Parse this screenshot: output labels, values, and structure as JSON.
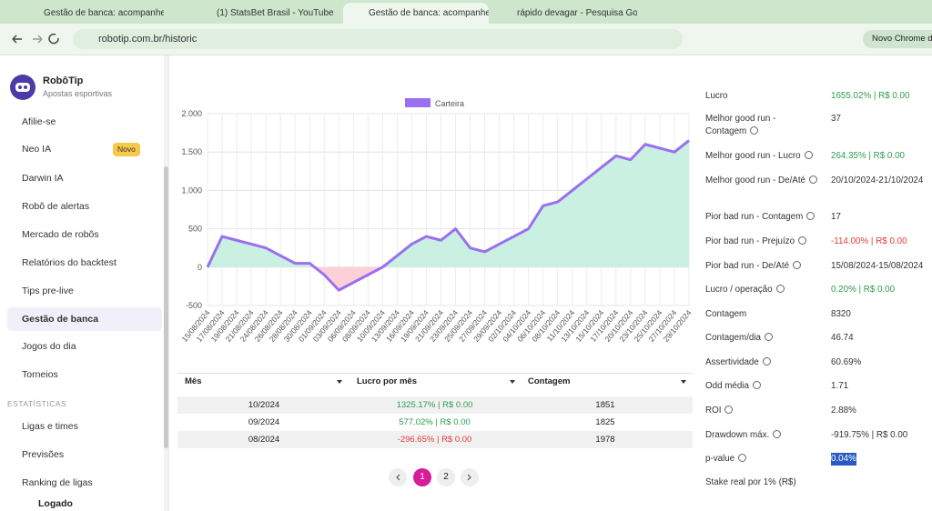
{
  "browser": {
    "tabs": [
      "Gestão de banca: acompanhe t",
      "(1) StatsBet Brasil - YouTube",
      "Gestão de banca: acompanhe t",
      "rápido devagar - Pesquisa Goo"
    ],
    "url": "robotip.com.br/historic",
    "profile": "Novo Chrome disp"
  },
  "sidebar": {
    "brand": "RobôTip",
    "tagline": "Apostas esportivas",
    "badge": "Novo",
    "items": [
      "Afilie-se",
      "Neo IA",
      "Darwin IA",
      "Robô de alertas",
      "Mercado de robôs",
      "Relatórios do backtest",
      "Tips pre-live",
      "Gestão de banca",
      "Jogos do dia",
      "Torneios"
    ],
    "section": "ESTATÍSTICAS",
    "section_items": [
      "Ligas e times",
      "Previsões",
      "Ranking de ligas"
    ],
    "user": "Logado"
  },
  "chart_data": {
    "type": "line",
    "legend": "Carteira",
    "categories": [
      "15/08/2024",
      "17/08/2024",
      "19/08/2024",
      "21/08/2024",
      "24/08/2024",
      "26/08/2024",
      "28/08/2024",
      "30/08/2024",
      "01/09/2024",
      "03/09/2024",
      "06/09/2024",
      "08/09/2024",
      "10/09/2024",
      "13/09/2024",
      "16/09/2024",
      "19/09/2024",
      "21/09/2024",
      "23/09/2024",
      "25/09/2024",
      "27/09/2024",
      "29/09/2024",
      "02/10/2024",
      "04/10/2024",
      "06/10/2024",
      "08/10/2024",
      "11/10/2024",
      "13/10/2024",
      "15/10/2024",
      "17/10/2024",
      "20/10/2024",
      "23/10/2024",
      "25/10/2024",
      "27/10/2024",
      "29/10/2024"
    ],
    "series": [
      {
        "name": "Carteira",
        "color": "#9a6ff0",
        "values": [
          0,
          400,
          350,
          300,
          250,
          150,
          50,
          50,
          -100,
          -300,
          -200,
          -100,
          0,
          150,
          300,
          400,
          350,
          500,
          250,
          200,
          300,
          400,
          500,
          800,
          850,
          1000,
          1150,
          1300,
          1450,
          1400,
          1600,
          1550,
          1500,
          1650
        ]
      }
    ],
    "ylim": [
      -500,
      2000
    ],
    "yticks": [
      -500,
      0,
      500,
      {
        "value": 1000,
        "label": "1.000"
      },
      {
        "value": 1500,
        "label": "1.500"
      },
      {
        "value": 2000,
        "label": "2.000"
      }
    ],
    "grid": true,
    "positive_fill": "#c9f0e0",
    "negative_fill": "#fbd0d6"
  },
  "table": {
    "headers": [
      "Mês",
      "Lucro por mês",
      "Contagem"
    ],
    "rows": [
      {
        "month": "10/2024",
        "profit": "1325.17% | R$ 0.00",
        "count": "1851",
        "color": "#2e9b4f"
      },
      {
        "month": "09/2024",
        "profit": "577.02% | R$ 0.00",
        "count": "1825",
        "color": "#2e9b4f"
      },
      {
        "month": "08/2024",
        "profit": "-296.65% | R$ 0.00",
        "count": "1978",
        "color": "#e03b3b"
      }
    ]
  },
  "pagination": {
    "pages": [
      "1",
      "2"
    ]
  },
  "stats": [
    {
      "label": "Lucro",
      "value": "1655.02% | R$ 0.00",
      "color": "#2e9b4f"
    },
    {
      "label": "Melhor good run - Contagem",
      "value": "37"
    },
    {
      "label": "Melhor good run - Lucro",
      "value": "264.35% | R$ 0.00",
      "color": "#2e9b4f"
    },
    {
      "label": "Melhor good run - De/Até",
      "value": "20/10/2024-21/10/2024"
    },
    {
      "label": "Pior bad run - Contagem",
      "value": "17"
    },
    {
      "label": "Pior bad run - Prejuízo",
      "value": "-114.00% | R$ 0.00",
      "color": "#e03b3b"
    },
    {
      "label": "Pior bad run - De/Até",
      "value": "15/08/2024-15/08/2024"
    },
    {
      "label": "Lucro / operação",
      "value": "0.20% | R$ 0.00",
      "color": "#2e9b4f"
    },
    {
      "label": "Contagem",
      "value": "8320"
    },
    {
      "label": "Contagem/dia",
      "value": "46.74"
    },
    {
      "label": "Assertividade",
      "value": "60.69%"
    },
    {
      "label": "Odd média",
      "value": "1.71"
    },
    {
      "label": "ROI",
      "value": "2.88%"
    },
    {
      "label": "Drawdown máx.",
      "value": "-919.75% | R$ 0.00"
    },
    {
      "label": "p-value",
      "value": "0.04%"
    },
    {
      "label": "Stake real por 1% (R$)"
    }
  ]
}
